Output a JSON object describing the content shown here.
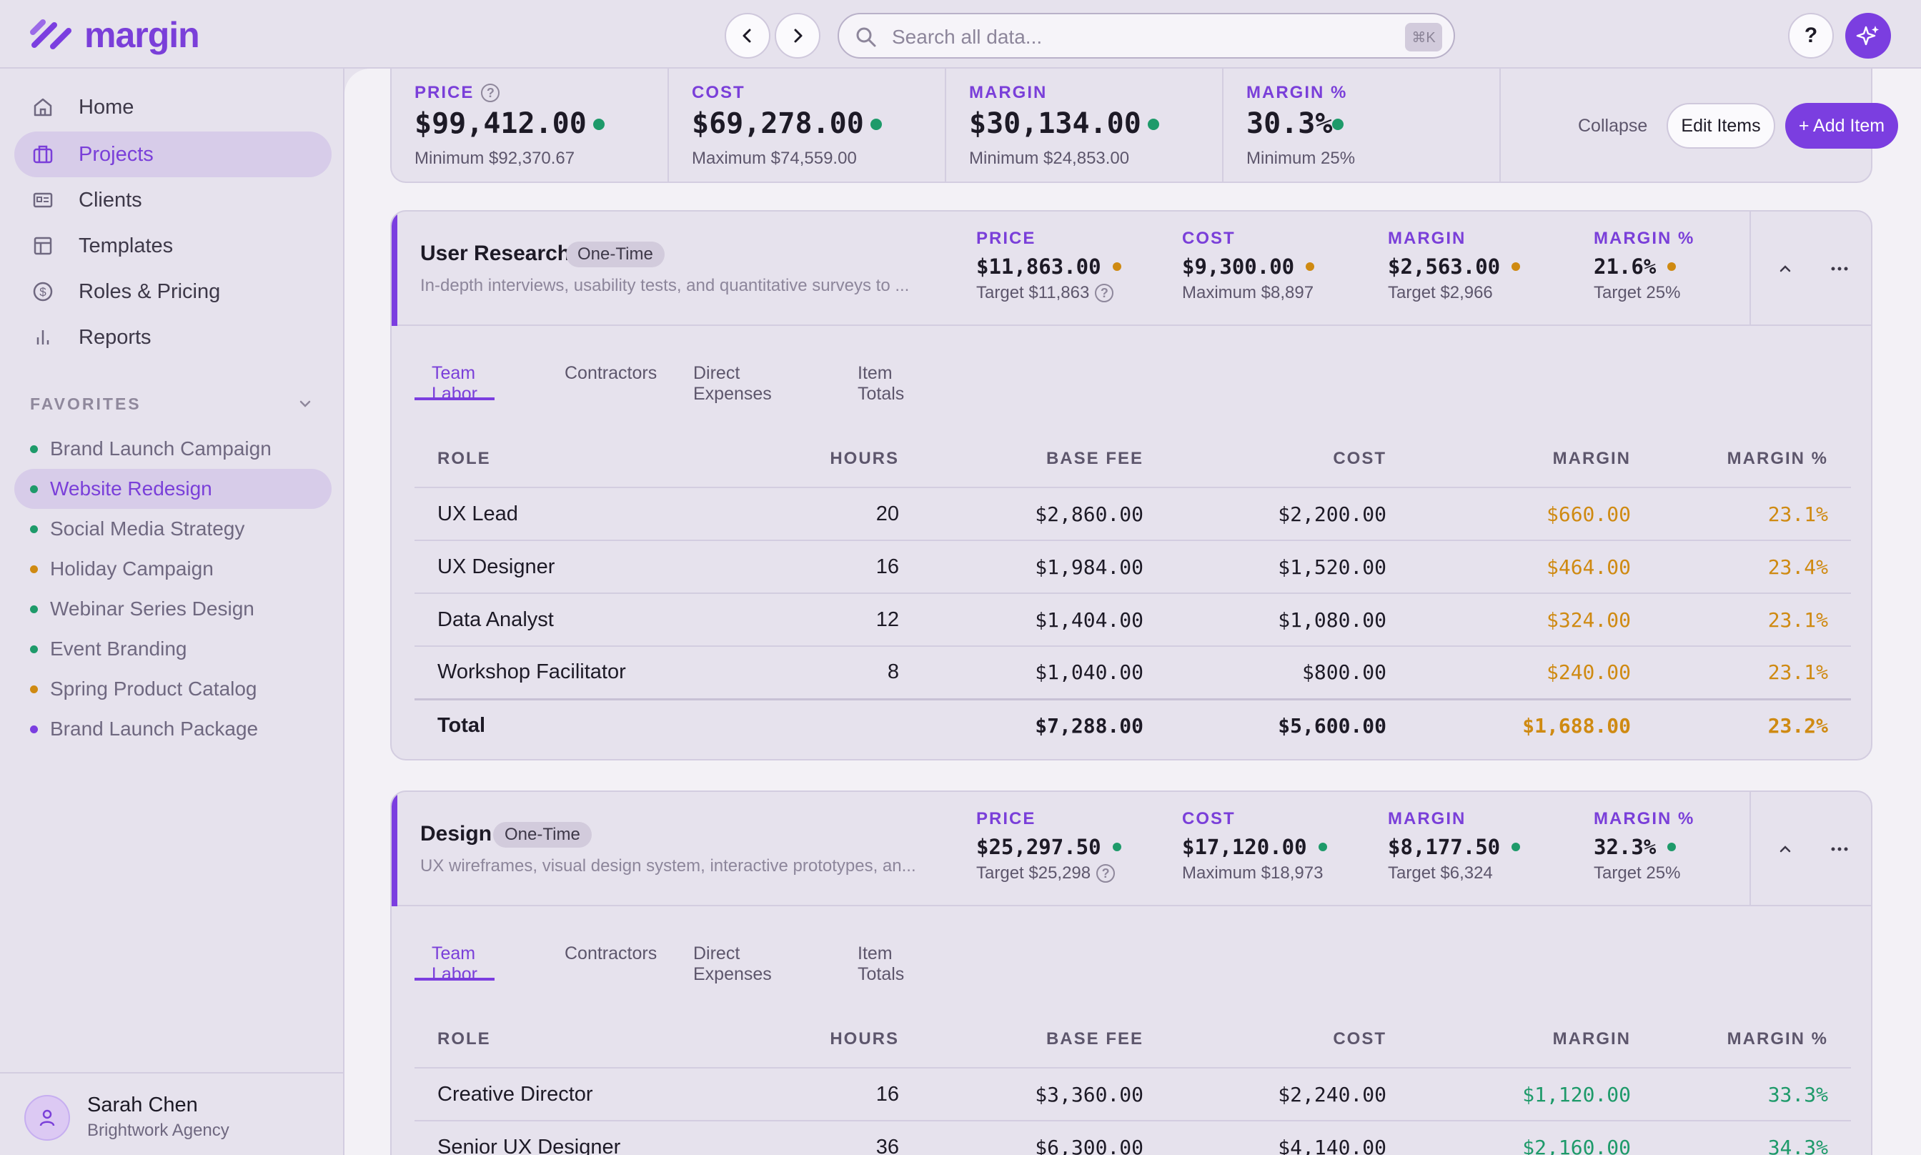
{
  "brand": {
    "name": "margin"
  },
  "search": {
    "placeholder": "Search all data...",
    "shortcut": "⌘K"
  },
  "header": {
    "help_label": "?"
  },
  "colors": {
    "accent": "#7b3ee0",
    "ok": "#1e9a6a",
    "warn": "#cf8a12"
  },
  "sidebar": {
    "nav": [
      {
        "label": "Home",
        "icon": "home-icon"
      },
      {
        "label": "Projects",
        "icon": "briefcase-icon",
        "active": true
      },
      {
        "label": "Clients",
        "icon": "id-card-icon"
      },
      {
        "label": "Templates",
        "icon": "layout-icon"
      },
      {
        "label": "Roles & Pricing",
        "icon": "dollar-circle-icon"
      },
      {
        "label": "Reports",
        "icon": "bar-chart-icon"
      }
    ],
    "favorites_heading": "FAVORITES",
    "favorites": [
      {
        "label": "Brand Launch Campaign",
        "status": "green"
      },
      {
        "label": "Website Redesign",
        "status": "green",
        "active": true
      },
      {
        "label": "Social Media Strategy",
        "status": "green"
      },
      {
        "label": "Holiday Campaign",
        "status": "amber"
      },
      {
        "label": "Webinar Series Design",
        "status": "green"
      },
      {
        "label": "Event Branding",
        "status": "green"
      },
      {
        "label": "Spring Product Catalog",
        "status": "amber"
      },
      {
        "label": "Brand Launch Package",
        "status": "purple"
      }
    ],
    "user": {
      "name": "Sarah Chen",
      "org": "Brightwork Agency"
    }
  },
  "summary": {
    "metrics": [
      {
        "label": "PRICE",
        "value": "$99,412.00",
        "sub": "Minimum $92,370.67",
        "help": "?"
      },
      {
        "label": "COST",
        "value": "$69,278.00",
        "sub": "Maximum $74,559.00"
      },
      {
        "label": "MARGIN",
        "value": "$30,134.00",
        "sub": "Minimum $24,853.00"
      },
      {
        "label": "MARGIN %",
        "value": "30.3%",
        "sub": "Minimum 25%"
      }
    ],
    "collapse_label": "Collapse",
    "edit_label": "Edit Items",
    "add_label": "+ Add Item"
  },
  "cards": [
    {
      "title": "User Research",
      "pill": "One-Time",
      "description": "In-depth interviews, usability tests, and quantitative surveys to ...",
      "metrics": [
        {
          "label": "PRICE",
          "value": "$11,863.00",
          "sub": "Target $11,863",
          "help": "?"
        },
        {
          "label": "COST",
          "value": "$9,300.00",
          "sub": "Maximum $8,897"
        },
        {
          "label": "MARGIN",
          "value": "$2,563.00",
          "sub": "Target $2,966"
        },
        {
          "label": "MARGIN %",
          "value": "21.6%",
          "sub": "Target 25%"
        }
      ],
      "tabs": [
        "Team Labor",
        "Contractors",
        "Direct Expenses",
        "Item Totals"
      ],
      "columns": [
        "ROLE",
        "HOURS",
        "BASE FEE",
        "COST",
        "MARGIN",
        "MARGIN %"
      ],
      "rows": [
        [
          "UX Lead",
          "20",
          "$2,860.00",
          "$2,200.00",
          "$660.00",
          "23.1%"
        ],
        [
          "UX Designer",
          "16",
          "$1,984.00",
          "$1,520.00",
          "$464.00",
          "23.4%"
        ],
        [
          "Data Analyst",
          "12",
          "$1,404.00",
          "$1,080.00",
          "$324.00",
          "23.1%"
        ],
        [
          "Workshop Facilitator",
          "8",
          "$1,040.00",
          "$800.00",
          "$240.00",
          "23.1%"
        ]
      ],
      "total": [
        "Total",
        "",
        "$7,288.00",
        "$5,600.00",
        "$1,688.00",
        "23.2%"
      ]
    },
    {
      "title": "Design",
      "pill": "One-Time",
      "description": "UX wireframes, visual design system, interactive prototypes, an...",
      "metrics": [
        {
          "label": "PRICE",
          "value": "$25,297.50",
          "sub": "Target $25,298",
          "help": "?"
        },
        {
          "label": "COST",
          "value": "$17,120.00",
          "sub": "Maximum $18,973"
        },
        {
          "label": "MARGIN",
          "value": "$8,177.50",
          "sub": "Target $6,324"
        },
        {
          "label": "MARGIN %",
          "value": "32.3%",
          "sub": "Target 25%"
        }
      ],
      "tabs": [
        "Team Labor",
        "Contractors",
        "Direct Expenses",
        "Item Totals"
      ],
      "columns": [
        "ROLE",
        "HOURS",
        "BASE FEE",
        "COST",
        "MARGIN",
        "MARGIN %"
      ],
      "rows": [
        [
          "Creative Director",
          "16",
          "$3,360.00",
          "$2,240.00",
          "$1,120.00",
          "33.3%"
        ],
        [
          "Senior UX Designer",
          "36",
          "$6,300.00",
          "$4,140.00",
          "$2,160.00",
          "34.3%"
        ]
      ]
    }
  ]
}
